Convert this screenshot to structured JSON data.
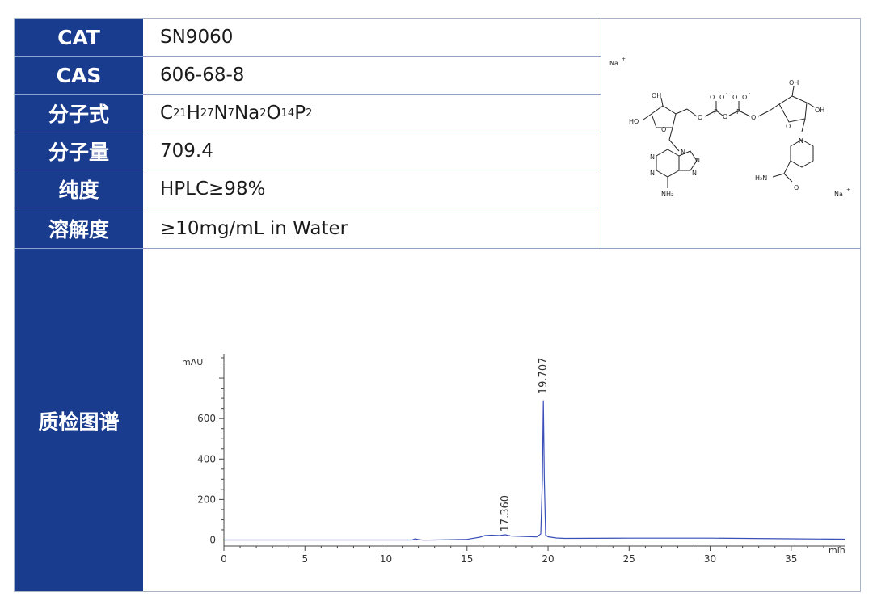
{
  "rows": [
    {
      "label": "CAT",
      "value": "SN9060"
    },
    {
      "label": "CAS",
      "value": "606-68-8"
    },
    {
      "label": "分子式",
      "value_parts": [
        "C",
        "21",
        "H",
        "27",
        "N",
        "7",
        "Na",
        "2",
        "O",
        "14",
        "P",
        "2"
      ]
    },
    {
      "label": "分子量",
      "value": "709.4"
    },
    {
      "label": "纯度",
      "value": "HPLC≥98%"
    },
    {
      "label": "溶解度",
      "value": "≥10mg/mL in Water"
    }
  ],
  "chromatogram_label": "质检图谱",
  "structure": {
    "counterion_1": "Na",
    "counterion_2": "Na",
    "charge": "+",
    "atoms": [
      "OH",
      "HO",
      "O",
      "O",
      "O",
      "O",
      "O",
      "O",
      "O",
      "O",
      "OH",
      "OH",
      "O",
      "N",
      "N",
      "N",
      "N",
      "N",
      "NH₂",
      "H₂N",
      "O",
      "N",
      "P",
      "P",
      "-",
      "-"
    ]
  },
  "chart_data": {
    "type": "line",
    "title": "",
    "ylabel": "mAU",
    "xlabel": "min",
    "xlim": [
      0,
      38.3
    ],
    "ylim": [
      -30,
      920
    ],
    "xticks": [
      0,
      5,
      10,
      15,
      20,
      25,
      30,
      35
    ],
    "yticks": [
      0,
      200,
      400,
      600
    ],
    "series": [
      {
        "x": [
          0,
          5,
          10,
          11.6,
          11.8,
          12.0,
          12.3,
          13,
          15,
          15.8,
          16.1,
          16.5,
          17.0,
          17.36,
          17.7,
          18.5,
          19.3,
          19.55,
          19.65,
          19.707,
          19.77,
          19.85,
          20.0,
          20.5,
          21,
          25,
          30,
          35,
          38.3
        ],
        "y": [
          0,
          0,
          0,
          0,
          6,
          2,
          -1,
          0,
          3,
          14,
          22,
          24,
          22,
          26,
          20,
          17,
          15,
          30,
          300,
          690,
          300,
          25,
          16,
          10,
          8,
          9,
          9,
          6,
          4
        ]
      }
    ],
    "peak_labels": [
      {
        "x": 17.36,
        "label": "17.360"
      },
      {
        "x": 19.707,
        "label": "19.707"
      }
    ]
  }
}
